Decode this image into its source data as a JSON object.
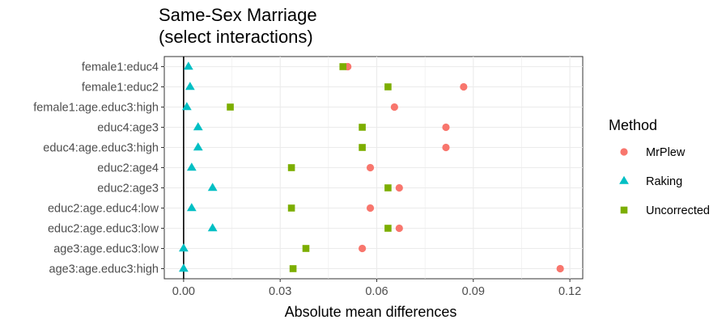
{
  "chart_data": {
    "type": "scatter",
    "title": [
      "Same-Sex Marriage",
      "(select interactions)"
    ],
    "xlabel": "Absolute mean differences",
    "ylabel": "",
    "xlim": [
      -0.006,
      0.124
    ],
    "xticks": [
      0.0,
      0.03,
      0.06,
      0.09,
      0.12
    ],
    "xtick_labels": [
      "0.00",
      "0.03",
      "0.06",
      "0.09",
      "0.12"
    ],
    "grid": true,
    "legend_position": "right",
    "categories": [
      "female1:educ4",
      "female1:educ2",
      "female1:age.educ3:high",
      "educ4:age3",
      "educ4:age.educ3:high",
      "educ2:age4",
      "educ2:age3",
      "educ2:age.educ4:low",
      "educ2:age.educ3:low",
      "age3:age.educ3:low",
      "age3:age.educ3:high"
    ],
    "legend": {
      "title": "Method"
    },
    "series": [
      {
        "name": "MrPlew",
        "color": "#F8766D",
        "shape": "circle",
        "values": [
          0.051,
          0.087,
          0.0655,
          0.0815,
          0.0815,
          0.058,
          0.067,
          0.058,
          0.067,
          0.0555,
          0.117
        ]
      },
      {
        "name": "Raking",
        "color": "#00BFC4",
        "shape": "triangle",
        "values": [
          0.0015,
          0.002,
          0.001,
          0.0045,
          0.0045,
          0.0025,
          0.009,
          0.0025,
          0.009,
          0.0,
          0.0
        ]
      },
      {
        "name": "Uncorrected",
        "color": "#7CAE00",
        "shape": "square",
        "values": [
          0.0495,
          0.0635,
          0.0145,
          0.0555,
          0.0555,
          0.0335,
          0.0635,
          0.0335,
          0.0635,
          0.038,
          0.034
        ]
      }
    ]
  }
}
